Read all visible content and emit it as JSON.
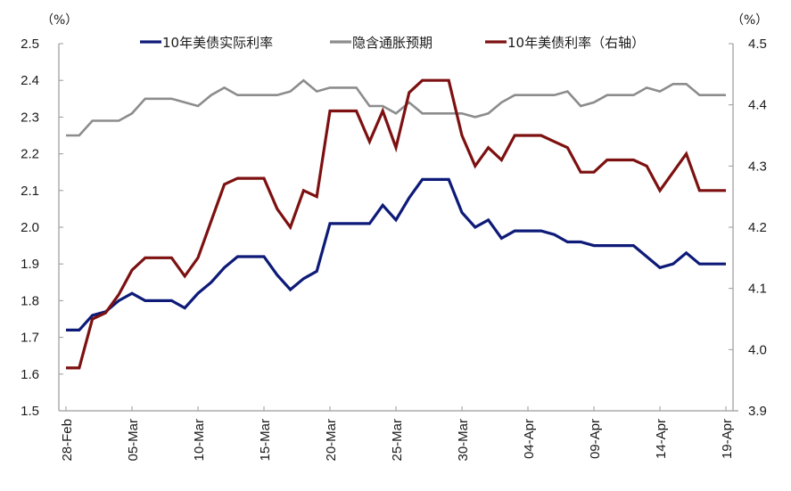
{
  "chart_data": {
    "type": "line",
    "title": "",
    "xlabel": "",
    "ylabel_left": "(%)",
    "ylabel_right": "(%)",
    "left_axis": {
      "ylim": [
        1.5,
        2.5
      ],
      "ticks": [
        "2.5",
        "2.4",
        "2.3",
        "2.2",
        "2.1",
        "2.0",
        "1.9",
        "1.8",
        "1.7",
        "1.6",
        "1.5"
      ]
    },
    "right_axis": {
      "ylim": [
        3.9,
        4.5
      ],
      "ticks": [
        "4.5",
        "4.4",
        "4.3",
        "4.2",
        "4.1",
        "4.0",
        "3.9"
      ]
    },
    "x_tick_labels": [
      "28-Feb",
      "05-Mar",
      "10-Mar",
      "15-Mar",
      "20-Mar",
      "25-Mar",
      "30-Mar",
      "04-Apr",
      "09-Apr",
      "14-Apr",
      "19-Apr"
    ],
    "x_tick_every": 5,
    "point_count": 51,
    "grid": false,
    "legend_position": "top",
    "series": [
      {
        "name": "10年美债实际利率",
        "axis": "left",
        "color": "#0d1a78",
        "values": [
          1.72,
          1.72,
          1.76,
          1.77,
          1.8,
          1.82,
          1.8,
          1.8,
          1.8,
          1.78,
          1.82,
          1.85,
          1.89,
          1.92,
          1.92,
          1.92,
          1.87,
          1.83,
          1.86,
          1.88,
          2.01,
          2.01,
          2.01,
          2.01,
          2.06,
          2.02,
          2.08,
          2.13,
          2.13,
          2.13,
          2.04,
          2.0,
          2.02,
          1.97,
          1.99,
          1.99,
          1.99,
          1.98,
          1.96,
          1.96,
          1.95,
          1.95,
          1.95,
          1.95,
          1.92,
          1.89,
          1.9,
          1.93,
          1.9,
          1.9,
          1.9
        ]
      },
      {
        "name": "隐含通胀预期",
        "axis": "left",
        "color": "#8c8c8c",
        "values": [
          2.25,
          2.25,
          2.29,
          2.29,
          2.29,
          2.31,
          2.35,
          2.35,
          2.35,
          2.34,
          2.33,
          2.36,
          2.38,
          2.36,
          2.36,
          2.36,
          2.36,
          2.37,
          2.4,
          2.37,
          2.38,
          2.38,
          2.38,
          2.33,
          2.33,
          2.31,
          2.34,
          2.31,
          2.31,
          2.31,
          2.31,
          2.3,
          2.31,
          2.34,
          2.36,
          2.36,
          2.36,
          2.36,
          2.37,
          2.33,
          2.34,
          2.36,
          2.36,
          2.36,
          2.38,
          2.37,
          2.39,
          2.39,
          2.36,
          2.36,
          2.36
        ]
      },
      {
        "name": "10年美债利率（右轴）",
        "axis": "right",
        "color": "#7d1010",
        "values": [
          3.97,
          3.97,
          4.05,
          4.06,
          4.09,
          4.13,
          4.15,
          4.15,
          4.15,
          4.12,
          4.15,
          4.21,
          4.27,
          4.28,
          4.28,
          4.28,
          4.23,
          4.2,
          4.26,
          4.25,
          4.39,
          4.39,
          4.39,
          4.34,
          4.39,
          4.33,
          4.42,
          4.44,
          4.44,
          4.44,
          4.35,
          4.3,
          4.33,
          4.31,
          4.35,
          4.35,
          4.35,
          4.34,
          4.33,
          4.29,
          4.29,
          4.31,
          4.31,
          4.31,
          4.3,
          4.26,
          4.29,
          4.32,
          4.26,
          4.26,
          4.26
        ]
      }
    ]
  },
  "legend": {
    "items": [
      {
        "label": "10年美债实际利率",
        "color": "#0d1a78"
      },
      {
        "label": "隐含通胀预期",
        "color": "#8c8c8c"
      },
      {
        "label": "10年美债利率（右轴）",
        "color": "#7d1010"
      }
    ]
  },
  "axes": {
    "left_unit": "（%）",
    "right_unit": "（%）"
  }
}
